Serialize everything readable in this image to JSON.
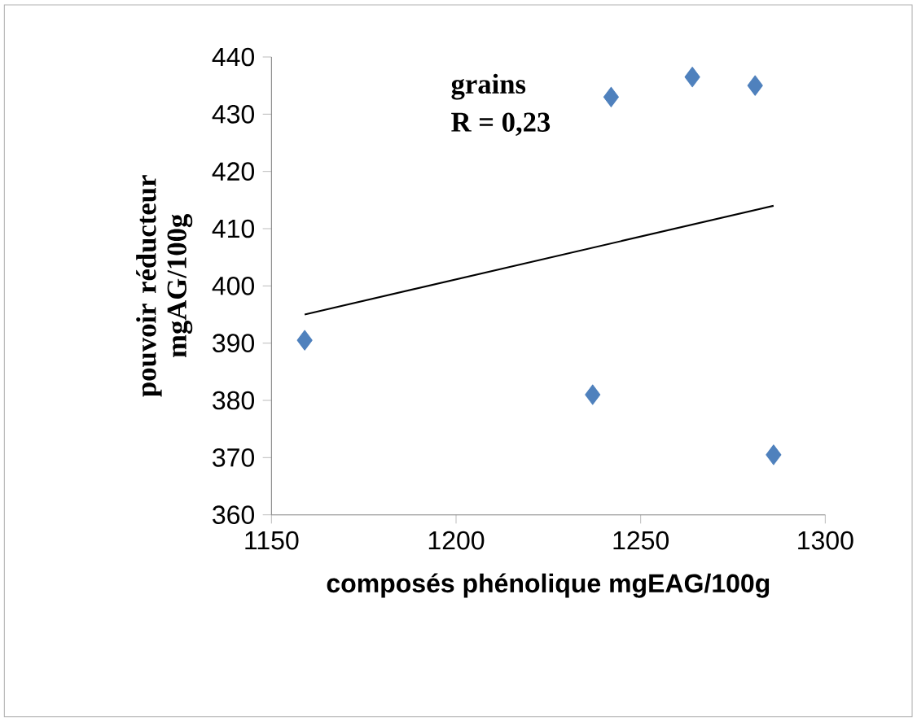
{
  "chart_data": {
    "type": "scatter",
    "xlabel": "composés phénolique mgEAG/100g",
    "ylabel": "pouvoir réducteur mgAG/100g",
    "annotations": [
      "grains",
      "R = 0,23"
    ],
    "series": [
      {
        "color": "#4f81bd",
        "marker": "diamond",
        "x": [
          1159,
          1237,
          1242,
          1264,
          1281,
          1286
        ],
        "values": [
          390.5,
          381,
          433,
          436.5,
          435,
          370.5
        ]
      },
      {
        "type": "line",
        "color": "#000000",
        "marker": "none",
        "line_style": "solid",
        "x": [
          1159,
          1286
        ],
        "values": [
          395,
          414
        ]
      }
    ],
    "xlim": [
      1150,
      1300
    ],
    "xticks": [
      1150,
      1200,
      1250,
      1300
    ],
    "ylim": [
      360,
      440
    ],
    "yticks": [
      360,
      370,
      380,
      390,
      400,
      410,
      420,
      430,
      440
    ],
    "grid": false
  }
}
